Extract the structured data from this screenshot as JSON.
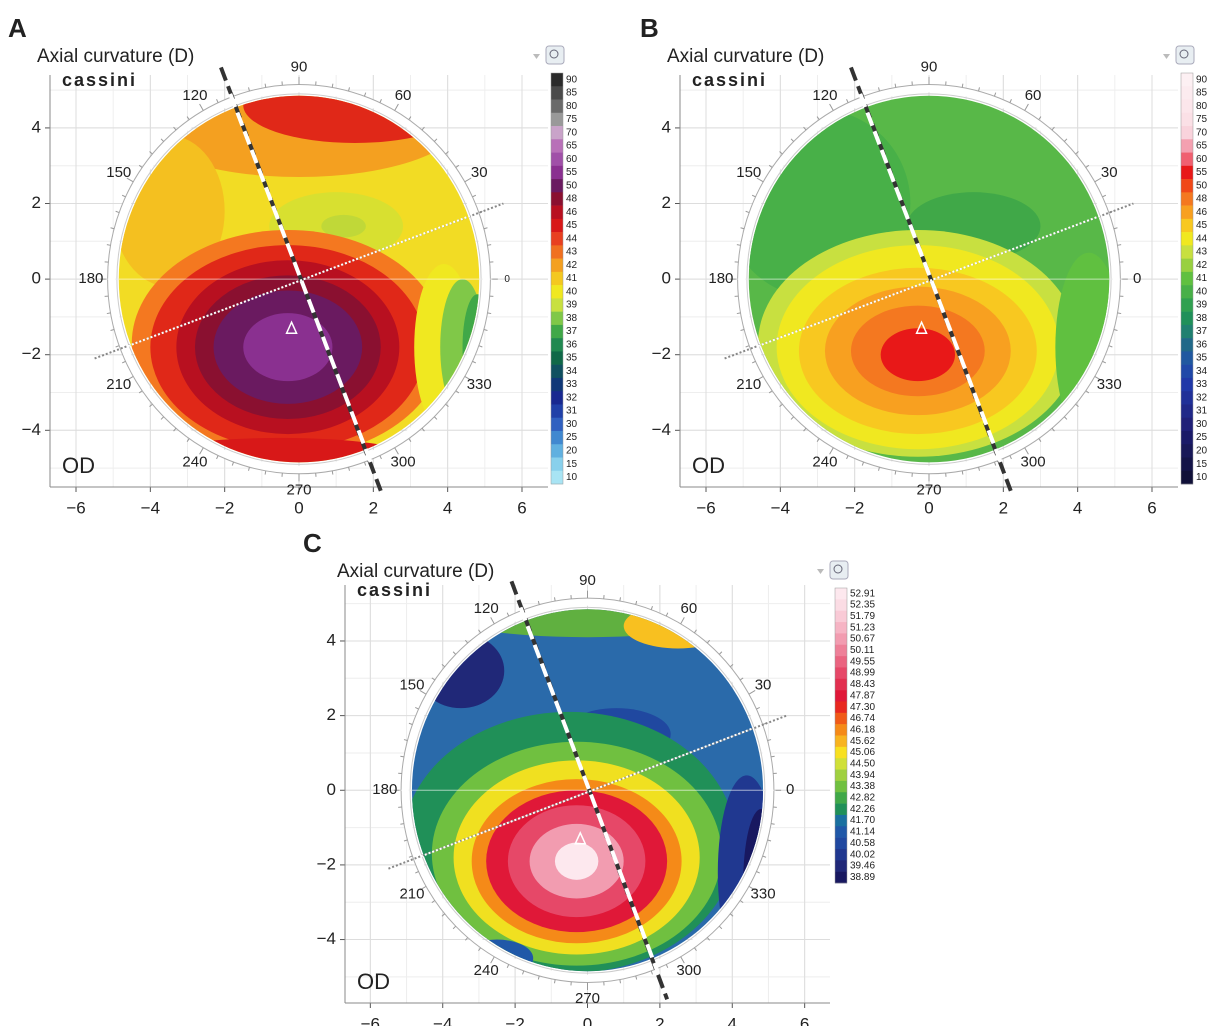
{
  "chart_data": [
    {
      "type": "topography",
      "panel_label": "A",
      "title": "Axial curvature (D)",
      "brand": "cassini",
      "eye_label": "OD",
      "xlim": [
        -6.7,
        6.7
      ],
      "ylim": [
        -5.5,
        5.4
      ],
      "xticks": [
        {
          "value": -6,
          "label": "−6"
        },
        {
          "value": -4,
          "label": "−4"
        },
        {
          "value": -2,
          "label": "−2"
        },
        0,
        2,
        4,
        6
      ],
      "yticks": [
        {
          "value": -4,
          "label": "−4"
        },
        {
          "value": -2,
          "label": "−2"
        },
        0,
        2,
        4
      ],
      "angle_ticks": [
        0,
        30,
        60,
        90,
        120,
        150,
        180,
        210,
        240,
        270,
        300,
        330
      ],
      "grid": true,
      "colorbar": {
        "levels": [
          90,
          85,
          80,
          75,
          70,
          65,
          60,
          55,
          50,
          48,
          46,
          45,
          44,
          43,
          42,
          41,
          40,
          39,
          38,
          37,
          36,
          35,
          34,
          33,
          32,
          31,
          30,
          25,
          20,
          15,
          10
        ],
        "colors": [
          "#2b2b2b",
          "#4a4a4a",
          "#6a6a6a",
          "#999999",
          "#c9a3c9",
          "#b870b8",
          "#a050a8",
          "#8a3090",
          "#6a1a60",
          "#8a1030",
          "#b81020",
          "#d81818",
          "#e84020",
          "#f07020",
          "#f4a020",
          "#f4c820",
          "#f0e820",
          "#c8e040",
          "#80c848",
          "#40a848",
          "#208850",
          "#106848",
          "#105060",
          "#103878",
          "#182890",
          "#2040a8",
          "#3060c0",
          "#4088d0",
          "#60b0e0",
          "#88d0ec",
          "#a8e4f4"
        ]
      }
    },
    {
      "type": "topography",
      "panel_label": "B",
      "title": "Axial curvature (D)",
      "brand": "cassini",
      "eye_label": "OD",
      "xlim": [
        -6.7,
        6.7
      ],
      "ylim": [
        -5.5,
        5.4
      ],
      "xticks": [
        {
          "value": -6,
          "label": "−6"
        },
        {
          "value": -4,
          "label": "−4"
        },
        {
          "value": -2,
          "label": "−2"
        },
        0,
        2,
        4,
        6
      ],
      "yticks": [
        {
          "value": -4,
          "label": "−4"
        },
        {
          "value": -2,
          "label": "−2"
        },
        0,
        2,
        4
      ],
      "angle_ticks": [
        0,
        30,
        60,
        90,
        120,
        150,
        180,
        210,
        240,
        270,
        300,
        330
      ],
      "grid": true,
      "colorbar": {
        "levels": [
          90,
          85,
          80,
          75,
          70,
          65,
          60,
          55,
          50,
          48,
          46,
          45,
          44,
          43,
          42,
          41,
          40,
          39,
          38,
          37,
          36,
          35,
          34,
          33,
          32,
          31,
          30,
          25,
          20,
          15,
          10
        ],
        "colors": [
          "#fdf0f3",
          "#fcebef",
          "#fce6eb",
          "#fbe0e6",
          "#f9d3dc",
          "#f4a0b0",
          "#f06070",
          "#e81818",
          "#f04818",
          "#f47820",
          "#f8a020",
          "#f8c820",
          "#f0e820",
          "#c8e040",
          "#98d040",
          "#60c040",
          "#48b048",
          "#30a050",
          "#20905a",
          "#208070",
          "#206888",
          "#2058a0",
          "#2048a8",
          "#2038a8",
          "#203098",
          "#202888",
          "#202078",
          "#1a1a68",
          "#181858",
          "#141448",
          "#101038"
        ]
      }
    },
    {
      "type": "topography",
      "panel_label": "C",
      "title": "Axial curvature (D)",
      "brand": "cassini",
      "eye_label": "OD",
      "xlim": [
        -6.7,
        6.7
      ],
      "ylim": [
        -5.7,
        5.5
      ],
      "xticks": [
        {
          "value": -6,
          "label": "−6"
        },
        {
          "value": -4,
          "label": "−4"
        },
        {
          "value": -2,
          "label": "−2"
        },
        0,
        2,
        4,
        6
      ],
      "yticks": [
        {
          "value": -4,
          "label": "−4"
        },
        {
          "value": -2,
          "label": "−2"
        },
        0,
        2,
        4
      ],
      "angle_ticks": [
        0,
        30,
        60,
        90,
        120,
        150,
        180,
        210,
        240,
        270,
        300,
        330
      ],
      "grid": true,
      "colorbar": {
        "levels": [
          52.91,
          52.35,
          51.79,
          51.23,
          50.67,
          50.11,
          49.55,
          48.99,
          48.43,
          47.87,
          {
            "value": 47.3,
            "label": "47.30"
          },
          46.74,
          46.18,
          45.62,
          45.06,
          {
            "value": 44.5,
            "label": "44.50"
          },
          43.94,
          43.38,
          42.82,
          42.26,
          {
            "value": 41.7,
            "label": "41.70"
          },
          41.14,
          40.58,
          40.02,
          39.46,
          38.89
        ],
        "colors": [
          "#fde8ee",
          "#fbdce4",
          "#f9cad6",
          "#f6b4c4",
          "#f29cb0",
          "#ee8098",
          "#ea6480",
          "#e64868",
          "#e23050",
          "#e01838",
          "#e82820",
          "#f05a18",
          "#f58a18",
          "#f8b420",
          "#f8e020",
          "#d0e038",
          "#a0d040",
          "#70c040",
          "#40a848",
          "#209058",
          "#1a70a0",
          "#2058a8",
          "#2048a0",
          "#203890",
          "#202878",
          "#181860"
        ]
      }
    }
  ]
}
